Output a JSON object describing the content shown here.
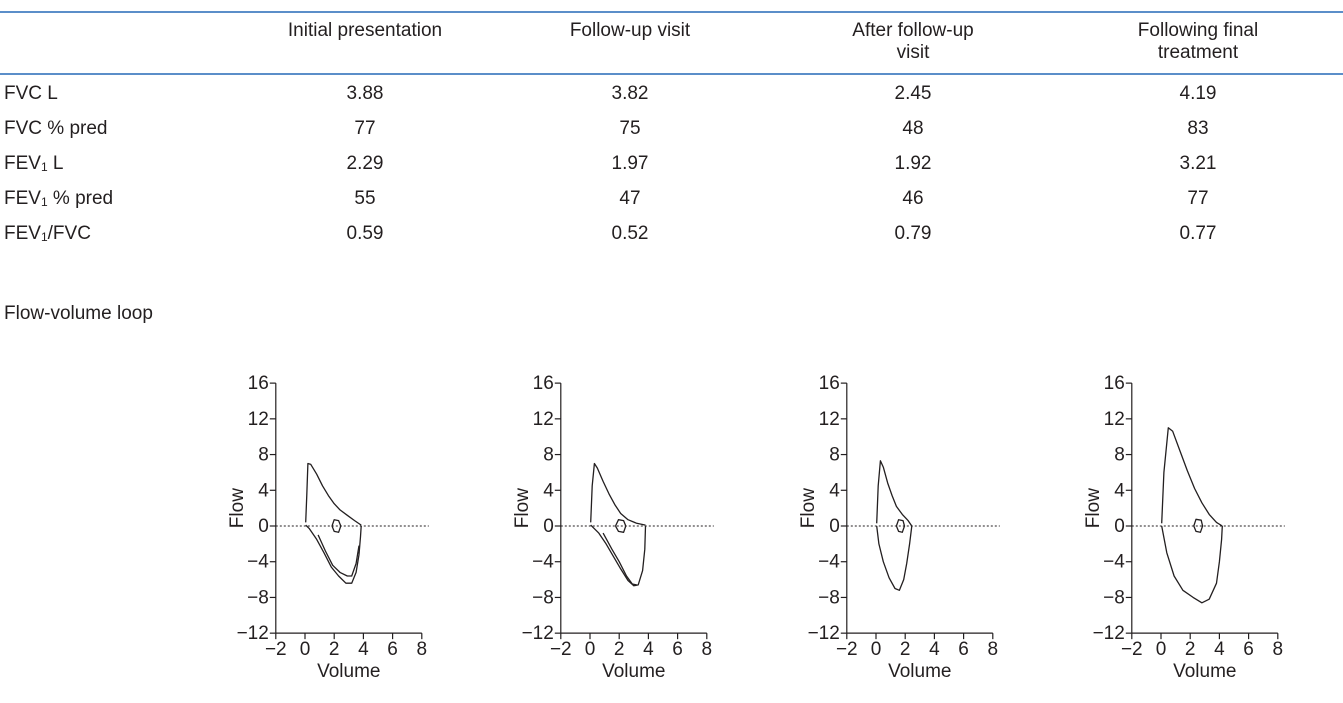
{
  "table": {
    "columns": [
      "Initial presentation",
      "Follow-up visit",
      "After follow-up visit",
      "Following final treatment"
    ],
    "rows": [
      {
        "label": "FVC L",
        "values": [
          "3.88",
          "3.82",
          "2.45",
          "4.19"
        ]
      },
      {
        "label": "FVC % pred",
        "values": [
          "77",
          "75",
          "48",
          "83"
        ]
      },
      {
        "label": "FEV1 L",
        "values": [
          "2.29",
          "1.97",
          "1.92",
          "3.21"
        ]
      },
      {
        "label": "FEV1 % pred",
        "values": [
          "55",
          "47",
          "46",
          "77"
        ]
      },
      {
        "label": "FEV1/FVC",
        "values": [
          "0.59",
          "0.52",
          "0.79",
          "0.77"
        ]
      }
    ],
    "loop_row_label": "Flow-volume loop"
  },
  "chart_data": [
    {
      "type": "line",
      "xlabel": "Volume",
      "ylabel": "Flow",
      "xlim": [
        -2,
        8
      ],
      "ylim": [
        -12,
        16
      ],
      "xticks": [
        "−2",
        "0",
        "2",
        "4",
        "6",
        "8"
      ],
      "yticks": [
        "16",
        "12",
        "8",
        "4",
        "0",
        "−4",
        "−8",
        "−12"
      ],
      "zero_line": "dotted",
      "series": [
        {
          "values": [
            [
              0.05,
              0.4
            ],
            [
              0.12,
              3.5
            ],
            [
              0.2,
              7.0
            ],
            [
              0.4,
              6.9
            ],
            [
              0.8,
              5.8
            ],
            [
              1.2,
              4.5
            ],
            [
              1.6,
              3.4
            ],
            [
              2.0,
              2.5
            ],
            [
              2.4,
              1.8
            ],
            [
              2.9,
              1.2
            ],
            [
              3.4,
              0.6
            ],
            [
              3.85,
              0.1
            ]
          ]
        },
        {
          "values": [
            [
              0.05,
              0.1
            ],
            [
              0.3,
              -0.3
            ],
            [
              0.8,
              -1.5
            ],
            [
              1.3,
              -3.0
            ],
            [
              1.8,
              -4.6
            ],
            [
              2.3,
              -5.6
            ],
            [
              2.8,
              -6.4
            ],
            [
              3.2,
              -6.4
            ],
            [
              3.5,
              -5.2
            ],
            [
              3.7,
              -3.2
            ],
            [
              3.8,
              -1.2
            ],
            [
              3.85,
              0.0
            ]
          ]
        },
        {
          "values": [
            [
              0.9,
              -1.0
            ],
            [
              1.4,
              -2.8
            ],
            [
              1.9,
              -4.4
            ],
            [
              2.4,
              -5.2
            ],
            [
              2.9,
              -5.6
            ],
            [
              3.2,
              -5.6
            ],
            [
              3.5,
              -4.2
            ],
            [
              3.7,
              -2.2
            ]
          ]
        },
        {
          "values": [
            [
              1.85,
              0.0
            ],
            [
              2.0,
              0.7
            ],
            [
              2.3,
              0.6
            ],
            [
              2.45,
              0.0
            ],
            [
              2.3,
              -0.7
            ],
            [
              2.0,
              -0.6
            ],
            [
              1.85,
              0.0
            ]
          ]
        }
      ]
    },
    {
      "type": "line",
      "xlabel": "Volume",
      "ylabel": "Flow",
      "xlim": [
        -2,
        8
      ],
      "ylim": [
        -12,
        16
      ],
      "xticks": [
        "−2",
        "0",
        "2",
        "4",
        "6",
        "8"
      ],
      "yticks": [
        "16",
        "12",
        "8",
        "4",
        "0",
        "−4",
        "−8",
        "−12"
      ],
      "zero_line": "dotted",
      "series": [
        {
          "values": [
            [
              0.05,
              0.4
            ],
            [
              0.15,
              4.5
            ],
            [
              0.3,
              7.0
            ],
            [
              0.5,
              6.5
            ],
            [
              0.9,
              5.0
            ],
            [
              1.3,
              3.6
            ],
            [
              1.7,
              2.4
            ],
            [
              2.1,
              1.4
            ],
            [
              2.6,
              0.7
            ],
            [
              3.2,
              0.3
            ],
            [
              3.8,
              0.1
            ]
          ]
        },
        {
          "values": [
            [
              0.05,
              0.1
            ],
            [
              0.6,
              -0.8
            ],
            [
              1.1,
              -2.0
            ],
            [
              1.6,
              -3.4
            ],
            [
              2.1,
              -4.8
            ],
            [
              2.6,
              -6.1
            ],
            [
              3.0,
              -6.7
            ],
            [
              3.3,
              -6.6
            ],
            [
              3.6,
              -5.0
            ],
            [
              3.75,
              -2.6
            ],
            [
              3.8,
              0.0
            ]
          ]
        },
        {
          "values": [
            [
              0.9,
              -0.8
            ],
            [
              1.5,
              -2.6
            ],
            [
              2.0,
              -4.0
            ],
            [
              2.5,
              -5.6
            ],
            [
              2.9,
              -6.5
            ],
            [
              3.2,
              -6.6
            ]
          ]
        },
        {
          "values": [
            [
              1.75,
              0.0
            ],
            [
              1.95,
              0.7
            ],
            [
              2.3,
              0.6
            ],
            [
              2.45,
              0.0
            ],
            [
              2.3,
              -0.7
            ],
            [
              1.95,
              -0.6
            ],
            [
              1.75,
              0.0
            ]
          ]
        }
      ]
    },
    {
      "type": "line",
      "xlabel": "Volume",
      "ylabel": "Flow",
      "xlim": [
        -2,
        8
      ],
      "ylim": [
        -12,
        16
      ],
      "xticks": [
        "−2",
        "0",
        "2",
        "4",
        "6",
        "8"
      ],
      "yticks": [
        "16",
        "12",
        "8",
        "4",
        "0",
        "−4",
        "−8",
        "−12"
      ],
      "zero_line": "dotted",
      "series": [
        {
          "values": [
            [
              0.05,
              0.3
            ],
            [
              0.15,
              4.5
            ],
            [
              0.3,
              7.3
            ],
            [
              0.5,
              6.6
            ],
            [
              0.8,
              4.8
            ],
            [
              1.1,
              3.4
            ],
            [
              1.4,
              2.2
            ],
            [
              1.8,
              1.3
            ],
            [
              2.2,
              0.6
            ],
            [
              2.45,
              0.0
            ]
          ]
        },
        {
          "values": [
            [
              0.05,
              0.0
            ],
            [
              0.2,
              -2.0
            ],
            [
              0.5,
              -4.0
            ],
            [
              0.9,
              -5.8
            ],
            [
              1.3,
              -7.0
            ],
            [
              1.6,
              -7.2
            ],
            [
              1.9,
              -6.0
            ],
            [
              2.1,
              -4.2
            ],
            [
              2.3,
              -2.0
            ],
            [
              2.45,
              0.0
            ]
          ]
        },
        {
          "values": [
            [
              1.4,
              0.0
            ],
            [
              1.55,
              0.7
            ],
            [
              1.85,
              0.6
            ],
            [
              1.95,
              0.0
            ],
            [
              1.8,
              -0.7
            ],
            [
              1.55,
              -0.6
            ],
            [
              1.4,
              0.0
            ]
          ]
        }
      ]
    },
    {
      "type": "line",
      "xlabel": "Volume",
      "ylabel": "Flow",
      "xlim": [
        -2,
        8
      ],
      "ylim": [
        -12,
        16
      ],
      "xticks": [
        "−2",
        "0",
        "2",
        "4",
        "6",
        "8"
      ],
      "yticks": [
        "16",
        "12",
        "8",
        "4",
        "0",
        "−4",
        "−8",
        "−12"
      ],
      "zero_line": "dotted",
      "series": [
        {
          "values": [
            [
              0.05,
              0.3
            ],
            [
              0.2,
              6.0
            ],
            [
              0.5,
              11.0
            ],
            [
              0.8,
              10.6
            ],
            [
              1.3,
              8.4
            ],
            [
              1.8,
              6.2
            ],
            [
              2.3,
              4.2
            ],
            [
              2.8,
              2.6
            ],
            [
              3.3,
              1.3
            ],
            [
              3.8,
              0.4
            ],
            [
              4.2,
              0.0
            ]
          ]
        },
        {
          "values": [
            [
              0.05,
              0.0
            ],
            [
              0.4,
              -3.0
            ],
            [
              0.9,
              -5.6
            ],
            [
              1.5,
              -7.2
            ],
            [
              2.2,
              -8.0
            ],
            [
              2.8,
              -8.6
            ],
            [
              3.3,
              -8.2
            ],
            [
              3.8,
              -6.4
            ],
            [
              4.0,
              -4.0
            ],
            [
              4.15,
              -1.5
            ],
            [
              4.2,
              0.0
            ]
          ]
        },
        {
          "values": [
            [
              2.25,
              0.0
            ],
            [
              2.4,
              0.75
            ],
            [
              2.75,
              0.65
            ],
            [
              2.85,
              0.0
            ],
            [
              2.7,
              -0.7
            ],
            [
              2.4,
              -0.6
            ],
            [
              2.25,
              0.0
            ]
          ]
        }
      ]
    }
  ]
}
